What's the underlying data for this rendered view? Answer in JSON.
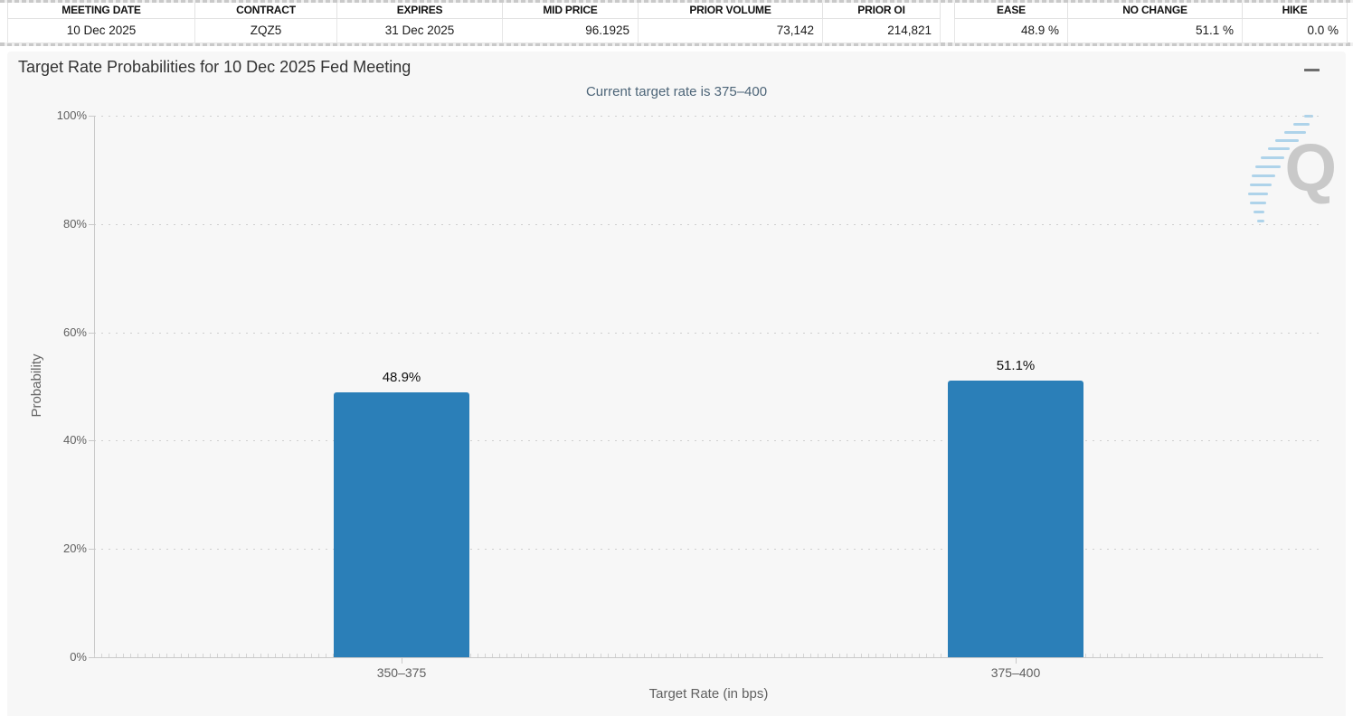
{
  "tables": {
    "left": {
      "headers": [
        "MEETING DATE",
        "CONTRACT",
        "EXPIRES",
        "MID PRICE",
        "PRIOR VOLUME",
        "PRIOR OI"
      ],
      "row": [
        "10 Dec 2025",
        "ZQZ5",
        "31 Dec 2025",
        "96.1925",
        "73,142",
        "214,821"
      ]
    },
    "right": {
      "headers": [
        "EASE",
        "NO CHANGE",
        "HIKE"
      ],
      "row": [
        "48.9 %",
        "51.1 %",
        "0.0 %"
      ]
    }
  },
  "chart_data": {
    "type": "bar",
    "title": "Target Rate Probabilities for 10 Dec 2025 Fed Meeting",
    "subtitle": "Current target rate is 375–400",
    "categories": [
      "350–375",
      "375–400"
    ],
    "values": [
      48.9,
      51.1
    ],
    "value_labels": [
      "48.9%",
      "51.1%"
    ],
    "xlabel": "Target Rate (in bps)",
    "ylabel": "Probability",
    "ylim": [
      0,
      100
    ],
    "ytick_step": 20,
    "ytick_suffix": "%",
    "grid": "horizontal-dotted",
    "legend": "none",
    "bar_color": "#2b7fb8"
  },
  "icons": {
    "context_menu": "hamburger-menu",
    "watermark_letter": "Q"
  },
  "colors": {
    "bar": "#2b7fb8",
    "chart_background": "#f7f7f7",
    "subtitle": "#4d6578",
    "axis_text": "#606060",
    "watermark_gray": "#c9c9c9",
    "watermark_blue": "#aed3ea"
  }
}
